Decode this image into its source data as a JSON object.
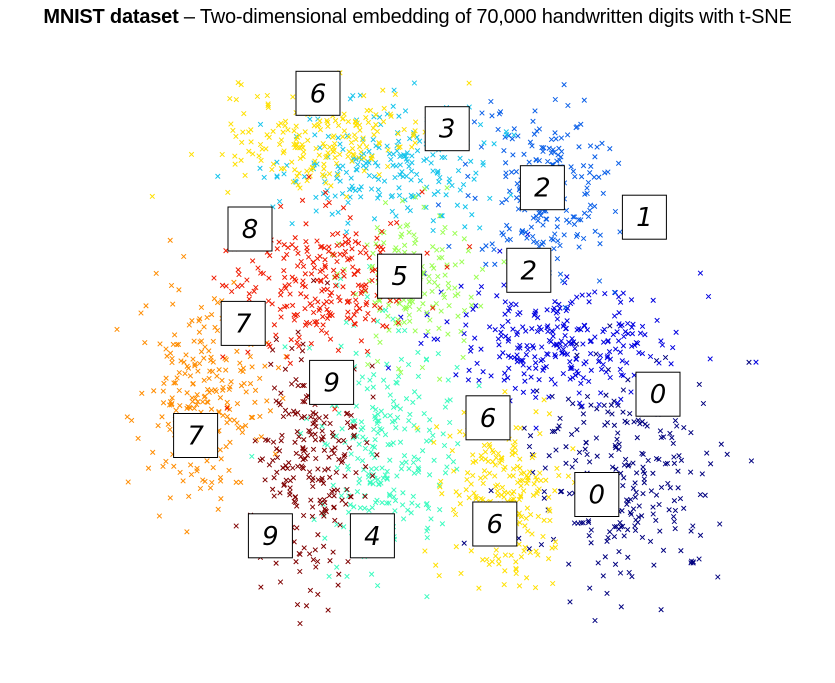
{
  "title": {
    "bold": "MNIST dataset",
    "rest": " – Two-dimensional embedding of 70,000 handwritten digits with t-SNE"
  },
  "chart_data": {
    "type": "scatter",
    "marker": "x",
    "axes_visible": false,
    "grid": false,
    "colors": {
      "0": "#00007f",
      "1": "#0000e0",
      "2": "#0a5fe8",
      "3": "#16c4ec",
      "4": "#3bfbbf",
      "5": "#9cff55",
      "6": "#ffe000",
      "7": "#ff8c00",
      "8": "#f01a00",
      "9": "#7f0000"
    },
    "clusters": [
      {
        "digit": "0",
        "center": [
          0.8,
          0.72
        ],
        "spread": [
          0.09,
          0.13
        ],
        "n": 260
      },
      {
        "digit": "1",
        "center": [
          0.71,
          0.49
        ],
        "spread": [
          0.12,
          0.06
        ],
        "n": 280
      },
      {
        "digit": "2",
        "center": [
          0.68,
          0.24
        ],
        "spread": [
          0.07,
          0.11
        ],
        "n": 230
      },
      {
        "digit": "3",
        "center": [
          0.45,
          0.19
        ],
        "spread": [
          0.11,
          0.07
        ],
        "n": 220
      },
      {
        "digit": "4",
        "center": [
          0.45,
          0.67
        ],
        "spread": [
          0.07,
          0.13
        ],
        "n": 250
      },
      {
        "digit": "5",
        "center": [
          0.49,
          0.38
        ],
        "spread": [
          0.06,
          0.08
        ],
        "n": 170
      },
      {
        "digit": "6",
        "center": [
          0.62,
          0.75
        ],
        "spread": [
          0.05,
          0.1
        ],
        "n": 230
      },
      {
        "digit": "6",
        "center": [
          0.36,
          0.15
        ],
        "spread": [
          0.1,
          0.06
        ],
        "n": 200
      },
      {
        "digit": "7",
        "center": [
          0.18,
          0.59
        ],
        "spread": [
          0.06,
          0.12
        ],
        "n": 240
      },
      {
        "digit": "8",
        "center": [
          0.35,
          0.39
        ],
        "spread": [
          0.09,
          0.08
        ],
        "n": 260
      },
      {
        "digit": "9",
        "center": [
          0.34,
          0.71
        ],
        "spread": [
          0.05,
          0.14
        ],
        "n": 240
      }
    ],
    "sample_images": [
      {
        "digit": "6",
        "x": 0.35,
        "y": 0.07
      },
      {
        "digit": "3",
        "x": 0.54,
        "y": 0.13
      },
      {
        "digit": "2",
        "x": 0.68,
        "y": 0.23
      },
      {
        "digit": "1",
        "x": 0.83,
        "y": 0.28
      },
      {
        "digit": "8",
        "x": 0.25,
        "y": 0.3
      },
      {
        "digit": "5",
        "x": 0.47,
        "y": 0.38
      },
      {
        "digit": "2",
        "x": 0.66,
        "y": 0.37
      },
      {
        "digit": "7",
        "x": 0.24,
        "y": 0.46
      },
      {
        "digit": "9",
        "x": 0.37,
        "y": 0.56
      },
      {
        "digit": "0",
        "x": 0.85,
        "y": 0.58
      },
      {
        "digit": "6",
        "x": 0.6,
        "y": 0.62
      },
      {
        "digit": "7",
        "x": 0.17,
        "y": 0.65
      },
      {
        "digit": "0",
        "x": 0.76,
        "y": 0.75
      },
      {
        "digit": "6",
        "x": 0.61,
        "y": 0.8
      },
      {
        "digit": "9",
        "x": 0.28,
        "y": 0.82
      },
      {
        "digit": "4",
        "x": 0.43,
        "y": 0.82
      }
    ]
  }
}
